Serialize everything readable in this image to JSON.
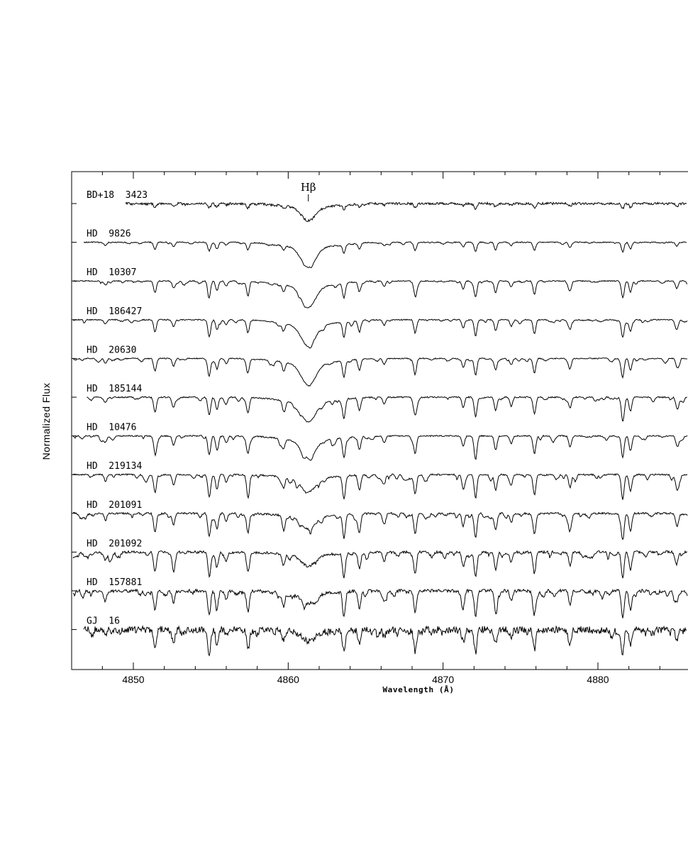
{
  "chart_data": {
    "type": "line",
    "title": "",
    "xlabel": "Wavelength (Å)",
    "ylabel": "Normalized Flux",
    "xlim": [
      4845,
      4886
    ],
    "xticks": [
      4850,
      4860,
      4870,
      4880
    ],
    "grid": false,
    "legend": "none; each spectrum labelled at upper-left",
    "annotation": {
      "text": "Hβ",
      "x": 4861.3
    },
    "series": [
      {
        "name": "BD+18  3423",
        "x_start": 4849.5,
        "noise": 0.55,
        "strength": 0.22,
        "hbeta_depth": 0.55
      },
      {
        "name": "HD  9826",
        "x_start": 4846.8,
        "noise": 0.25,
        "strength": 0.45,
        "hbeta_depth": 0.8
      },
      {
        "name": "HD  10307",
        "x_start": 4846.0,
        "noise": 0.25,
        "strength": 0.75,
        "hbeta_depth": 0.85
      },
      {
        "name": "HD  186427",
        "x_start": 4846.0,
        "noise": 0.25,
        "strength": 0.78,
        "hbeta_depth": 0.85
      },
      {
        "name": "HD  20630",
        "x_start": 4846.0,
        "noise": 0.25,
        "strength": 0.82,
        "hbeta_depth": 0.85
      },
      {
        "name": "HD  185144",
        "x_start": 4847.0,
        "noise": 0.3,
        "strength": 0.95,
        "hbeta_depth": 0.8
      },
      {
        "name": "HD  10476",
        "x_start": 4846.0,
        "noise": 0.3,
        "strength": 1.0,
        "hbeta_depth": 0.7
      },
      {
        "name": "HD  219134",
        "x_start": 4846.0,
        "noise": 0.35,
        "strength": 1.15,
        "hbeta_depth": 0.55
      },
      {
        "name": "HD  201091",
        "x_start": 4846.0,
        "noise": 0.45,
        "strength": 1.2,
        "hbeta_depth": 0.5
      },
      {
        "name": "HD  201092",
        "x_start": 4846.0,
        "noise": 0.6,
        "strength": 1.22,
        "hbeta_depth": 0.45
      },
      {
        "name": "HD  157881",
        "x_start": 4846.0,
        "noise": 0.75,
        "strength": 1.25,
        "hbeta_depth": 0.4
      },
      {
        "name": "GJ  16",
        "x_start": 4846.8,
        "noise": 1.6,
        "strength": 1.1,
        "hbeta_depth": 0.3
      }
    ],
    "common_absorption_lines": [
      4848.2,
      4851.4,
      4852.6,
      4854.9,
      4855.4,
      4856.0,
      4857.4,
      4859.7,
      4863.6,
      4864.6,
      4866.2,
      4868.2,
      4871.3,
      4872.1,
      4873.4,
      4874.4,
      4875.9,
      4878.2,
      4881.6,
      4882.1,
      4885.1
    ]
  }
}
